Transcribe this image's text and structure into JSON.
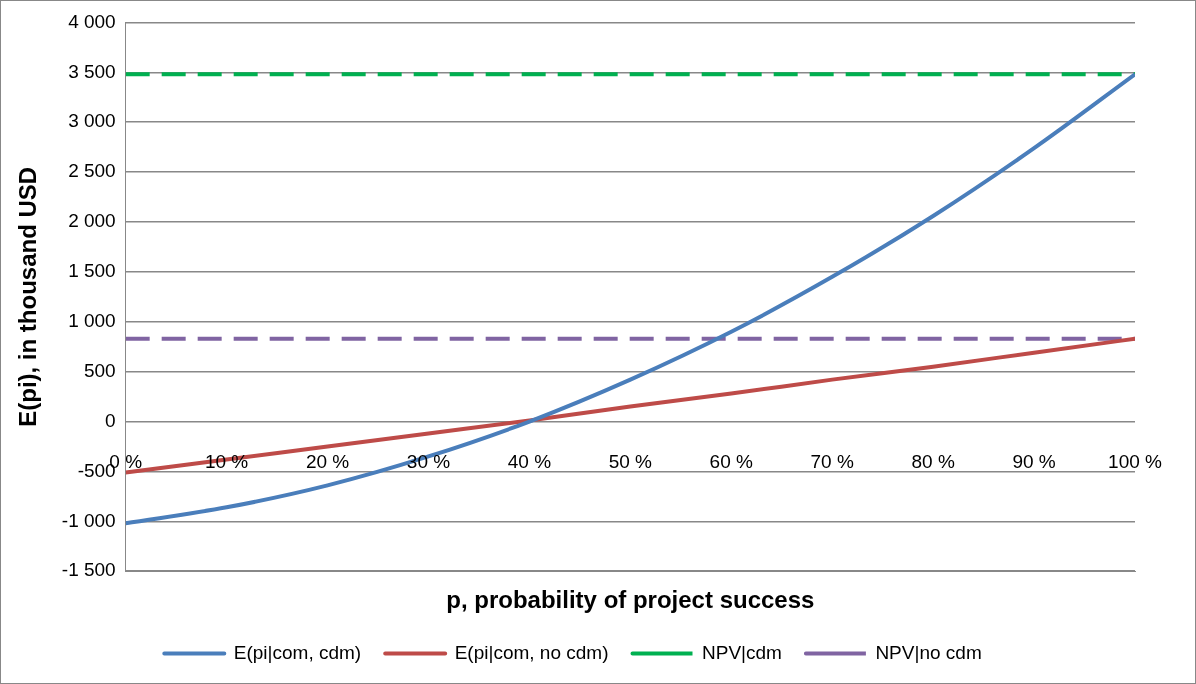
{
  "chart_data": {
    "type": "line",
    "xlabel": "p, probability of project success",
    "ylabel": "E(pi), in thousand USD",
    "x": [
      0,
      10,
      20,
      30,
      40,
      50,
      60,
      70,
      80,
      90,
      100
    ],
    "series": [
      {
        "name": "E(pi|com, cdm)",
        "color": "#4a7ebb",
        "values": [
          -1020,
          -860,
          -640,
          -350,
          0,
          420,
          900,
          1450,
          2060,
          2740,
          3480
        ]
      },
      {
        "name": "E(pi|com, no cdm)",
        "color": "#be4b48",
        "values": [
          -510,
          -380,
          -250,
          -120,
          10,
          150,
          280,
          420,
          550,
          690,
          830
        ]
      },
      {
        "name": "NPV|cdm",
        "color": "#00b050",
        "line_style": "dashed",
        "values": [
          3480,
          3480,
          3480,
          3480,
          3480,
          3480,
          3480,
          3480,
          3480,
          3480,
          3480
        ]
      },
      {
        "name": "NPV|no cdm",
        "color": "#8064a2",
        "line_style": "dashed",
        "values": [
          830,
          830,
          830,
          830,
          830,
          830,
          830,
          830,
          830,
          830,
          830
        ]
      }
    ],
    "xlim": [
      0,
      100
    ],
    "xticks": [
      {
        "value": 0,
        "label": "0 %"
      },
      {
        "value": 10,
        "label": "10 %"
      },
      {
        "value": 20,
        "label": "20 %"
      },
      {
        "value": 30,
        "label": "30 %"
      },
      {
        "value": 40,
        "label": "40 %"
      },
      {
        "value": 50,
        "label": "50 %"
      },
      {
        "value": 60,
        "label": "60 %"
      },
      {
        "value": 70,
        "label": "70 %"
      },
      {
        "value": 80,
        "label": "80 %"
      },
      {
        "value": 90,
        "label": "90 %"
      },
      {
        "value": 100,
        "label": "100 %"
      }
    ],
    "ylim": [
      -1500,
      4000
    ],
    "yticks": [
      {
        "value": -1500,
        "label": "-1 500"
      },
      {
        "value": -1000,
        "label": "-1 000"
      },
      -500,
      0,
      500,
      {
        "value": 1000,
        "label": "1 000"
      },
      {
        "value": 1500,
        "label": "1 500"
      },
      {
        "value": 2000,
        "label": "2 000"
      },
      {
        "value": 2500,
        "label": "2 500"
      },
      {
        "value": 3000,
        "label": "3 000"
      },
      {
        "value": 3500,
        "label": "3 500"
      },
      {
        "value": 4000,
        "label": "4 000"
      }
    ],
    "grid": "y",
    "legend": "bottom",
    "marker": "none",
    "line_style": "solid"
  }
}
